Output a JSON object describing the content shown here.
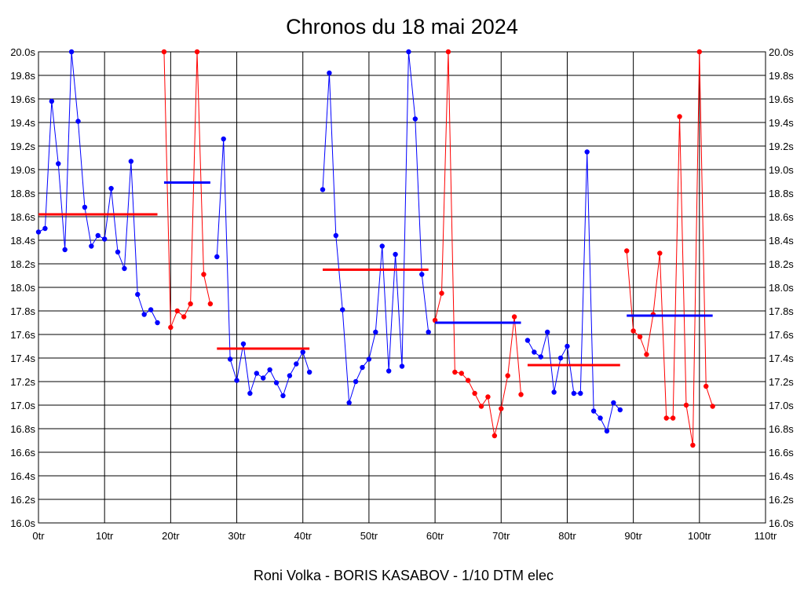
{
  "chart_data": {
    "type": "line",
    "title": "Chronos du 18 mai 2024",
    "subtitle": "Roni Volka - BORIS KASABOV - 1/10 DTM elec",
    "grid": true,
    "xlim": [
      0,
      110
    ],
    "ylim": [
      16.0,
      20.0
    ],
    "x_ticks": [
      "0tr",
      "10tr",
      "20tr",
      "30tr",
      "40tr",
      "50tr",
      "60tr",
      "70tr",
      "80tr",
      "90tr",
      "100tr",
      "110tr"
    ],
    "y_ticks": [
      "16.0s",
      "16.2s",
      "16.4s",
      "16.6s",
      "16.8s",
      "17.0s",
      "17.2s",
      "17.4s",
      "17.6s",
      "17.8s",
      "18.0s",
      "18.2s",
      "18.4s",
      "18.6s",
      "18.8s",
      "19.0s",
      "19.2s",
      "19.4s",
      "19.6s",
      "19.8s",
      "20.0s"
    ],
    "series": [
      {
        "color": "#0000ff",
        "x": [
          0,
          1,
          2,
          3,
          4,
          5,
          6,
          7,
          8,
          9,
          10,
          11,
          12,
          13,
          14,
          15,
          16,
          17,
          18
        ],
        "y": [
          18.47,
          18.5,
          19.58,
          19.05,
          18.32,
          20.0,
          19.41,
          18.68,
          18.35,
          18.44,
          18.41,
          18.84,
          18.3,
          18.16,
          19.07,
          17.94,
          17.77,
          17.81,
          17.7
        ],
        "mean": 18.62,
        "mean_color": "#ff0000",
        "mean_x": [
          0,
          18
        ]
      },
      {
        "color": "#ff0000",
        "x": [
          19,
          20,
          21,
          22,
          23,
          24,
          25,
          26
        ],
        "y": [
          20.0,
          17.66,
          17.8,
          17.75,
          17.86,
          20.0,
          18.11,
          17.86
        ],
        "mean": 18.89,
        "mean_color": "#0000ff",
        "mean_x": [
          19,
          26
        ]
      },
      {
        "color": "#0000ff",
        "x": [
          27,
          28,
          29,
          30,
          31,
          32,
          33,
          34,
          35,
          36,
          37,
          38,
          39,
          40,
          41
        ],
        "y": [
          18.26,
          19.26,
          17.39,
          17.21,
          17.52,
          17.1,
          17.27,
          17.23,
          17.3,
          17.19,
          17.08,
          17.25,
          17.35,
          17.45,
          17.28
        ],
        "mean": 17.48,
        "mean_color": "#ff0000",
        "mean_x": [
          27,
          41
        ]
      },
      {
        "color": "#0000ff",
        "x": [
          43,
          44,
          45,
          46,
          47,
          48,
          49,
          50,
          51,
          52,
          53,
          54,
          55,
          56,
          57,
          58,
          59
        ],
        "y": [
          18.83,
          19.82,
          18.44,
          17.81,
          17.02,
          17.2,
          17.32,
          17.39,
          17.62,
          18.35,
          17.29,
          18.28,
          17.33,
          20.0,
          19.43,
          18.11,
          17.62
        ],
        "mean": 18.15,
        "mean_color": "#ff0000",
        "mean_x": [
          43,
          59
        ]
      },
      {
        "color": "#ff0000",
        "x": [
          60,
          61,
          62,
          63,
          64,
          65,
          66,
          67,
          68,
          69,
          70,
          71,
          72,
          73
        ],
        "y": [
          17.72,
          17.95,
          20.0,
          17.28,
          17.27,
          17.21,
          17.1,
          16.99,
          17.07,
          16.74,
          16.97,
          17.25,
          17.75,
          17.09
        ],
        "mean": 17.7,
        "mean_color": "#0000ff",
        "mean_x": [
          60,
          73
        ]
      },
      {
        "color": "#0000ff",
        "x": [
          74,
          75,
          76,
          77,
          78,
          79,
          80,
          81,
          82,
          83,
          84,
          85,
          86,
          87,
          88
        ],
        "y": [
          17.55,
          17.45,
          17.41,
          17.62,
          17.11,
          17.4,
          17.5,
          17.1,
          17.1,
          19.15,
          16.95,
          16.89,
          16.78,
          17.02,
          16.96
        ],
        "mean": 17.34,
        "mean_color": "#ff0000",
        "mean_x": [
          74,
          88
        ]
      },
      {
        "color": "#ff0000",
        "x": [
          89,
          90,
          91,
          92,
          93,
          94,
          95,
          96,
          97,
          98,
          99,
          100,
          101,
          102
        ],
        "y": [
          18.31,
          17.63,
          17.58,
          17.43,
          17.77,
          18.29,
          16.89,
          16.89,
          19.45,
          17.0,
          16.66,
          20.0,
          17.16,
          16.99
        ],
        "mean": 17.76,
        "mean_color": "#0000ff",
        "mean_x": [
          89,
          102
        ]
      }
    ]
  }
}
